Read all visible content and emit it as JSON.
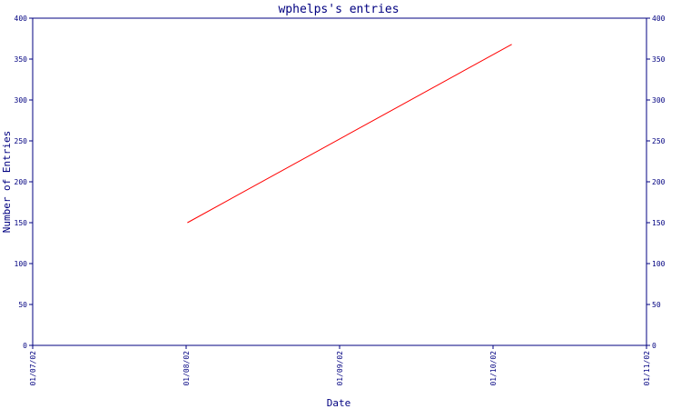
{
  "chart_data": {
    "type": "line",
    "title": "wphelps's entries",
    "xlabel": "Date",
    "ylabel": "Number of Entries",
    "x_ticks": [
      "01/07/02",
      "01/08/02",
      "01/09/02",
      "01/10/02",
      "01/11/02"
    ],
    "y_ticks": [
      0,
      50,
      100,
      150,
      200,
      250,
      300,
      350,
      400
    ],
    "ylim": [
      0,
      400
    ],
    "xlim": [
      "2002-07-01",
      "2002-11-01"
    ],
    "series": [
      {
        "color": "#ff0000",
        "points": [
          {
            "x": "2002-08-01",
            "y": 150
          },
          {
            "x": "2002-10-05",
            "y": 368
          }
        ]
      }
    ],
    "grid": false,
    "axis_color": "#000080"
  }
}
